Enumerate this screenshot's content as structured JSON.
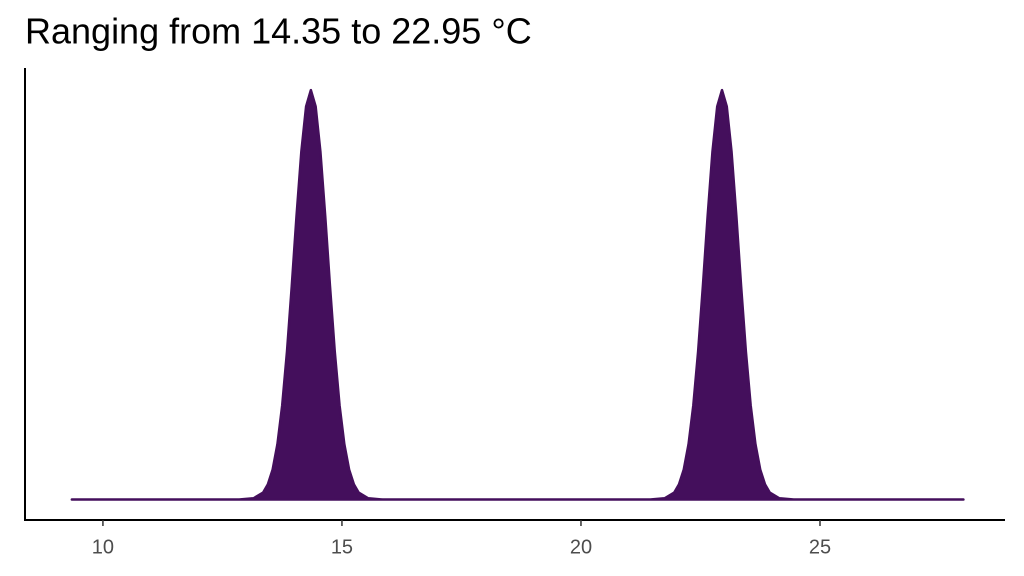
{
  "chart_data": {
    "type": "area",
    "title": "Ranging from 14.35 to 22.95 °C",
    "x": [
      9.35,
      12.85,
      13.15,
      13.35,
      13.45,
      13.55,
      13.65,
      13.75,
      13.85,
      13.95,
      14.05,
      14.15,
      14.25,
      14.35,
      14.45,
      14.55,
      14.65,
      14.75,
      14.85,
      14.95,
      15.05,
      15.15,
      15.25,
      15.35,
      15.55,
      15.85,
      21.45,
      21.75,
      21.95,
      22.05,
      22.15,
      22.25,
      22.35,
      22.45,
      22.55,
      22.65,
      22.75,
      22.85,
      22.95,
      23.05,
      23.15,
      23.25,
      23.35,
      23.45,
      23.55,
      23.65,
      23.75,
      23.85,
      23.95,
      24.15,
      24.45,
      28.0
    ],
    "values": [
      0,
      0,
      0.003,
      0.017,
      0.037,
      0.073,
      0.135,
      0.23,
      0.361,
      0.521,
      0.693,
      0.849,
      0.96,
      1,
      0.96,
      0.849,
      0.693,
      0.521,
      0.361,
      0.23,
      0.135,
      0.073,
      0.037,
      0.017,
      0.003,
      0,
      0,
      0.003,
      0.017,
      0.037,
      0.073,
      0.135,
      0.23,
      0.361,
      0.521,
      0.693,
      0.849,
      0.96,
      1,
      0.96,
      0.849,
      0.693,
      0.521,
      0.361,
      0.23,
      0.135,
      0.073,
      0.037,
      0.017,
      0.003,
      0,
      0
    ],
    "color": "#440f5c",
    "xlim": [
      8.37,
      28.87
    ],
    "xticks": [
      10,
      15,
      20,
      25
    ],
    "ylim": [
      -0.05,
      1.054
    ],
    "grid": false
  }
}
